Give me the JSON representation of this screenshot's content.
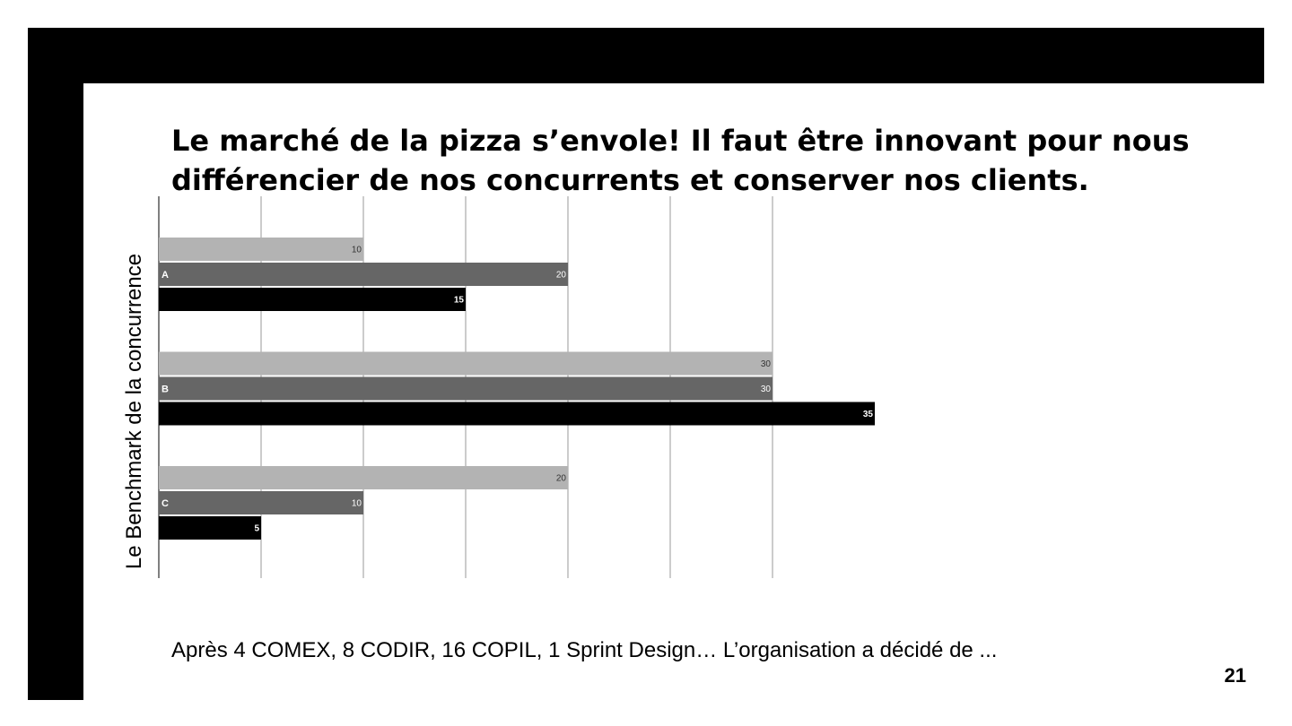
{
  "slide": {
    "title_line_1": "Le marché de la pizza s’envole! Il faut être innovant pour nous",
    "title_line_2": "différencier de nos concurrents et conserver nos clients.",
    "footer": "Après 4 COMEX, 8 CODIR, 16 COPIL, 1 Sprint Design… L’organisation a décidé de ...",
    "page_number": "21"
  },
  "colors": {
    "frame": "#000000",
    "background": "#ffffff",
    "grid": "#999999",
    "series": [
      "#b3b3b3",
      "#666666",
      "#000000"
    ]
  },
  "chart_data": {
    "type": "bar",
    "orientation": "horizontal",
    "categories": [
      "A",
      "B",
      "C"
    ],
    "series": [
      {
        "values": [
          10,
          30,
          20
        ]
      },
      {
        "values": [
          20,
          30,
          10
        ]
      },
      {
        "values": [
          15,
          35,
          5
        ]
      }
    ],
    "ylabel": "Le Benchmark de la concurrence",
    "xlim": [
      0,
      35
    ],
    "grid": true,
    "data_labels": true
  }
}
